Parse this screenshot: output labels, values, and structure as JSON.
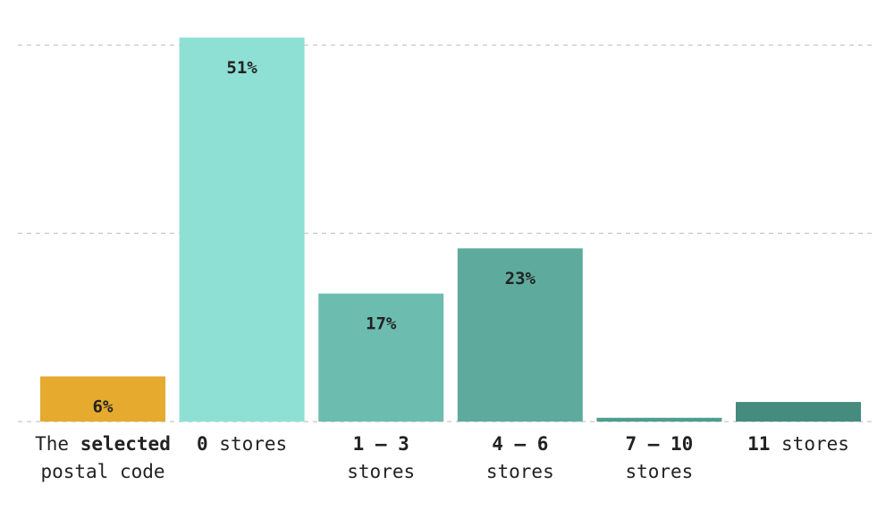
{
  "chart_data": {
    "type": "bar",
    "title": "",
    "xlabel": "",
    "ylabel": "",
    "ylim": [
      0,
      60
    ],
    "grid": true,
    "gridlines": [
      0,
      25,
      50
    ],
    "categories": [
      {
        "lines": [
          [
            {
              "text": "The ",
              "bold": false
            },
            {
              "text": "selected",
              "bold": true
            }
          ],
          [
            {
              "text": "postal code",
              "bold": false
            }
          ]
        ]
      },
      {
        "lines": [
          [
            {
              "text": "0",
              "bold": true
            },
            {
              "text": " stores",
              "bold": false
            }
          ]
        ]
      },
      {
        "lines": [
          [
            {
              "text": "1 – 3",
              "bold": true
            }
          ],
          [
            {
              "text": "stores",
              "bold": false
            }
          ]
        ]
      },
      {
        "lines": [
          [
            {
              "text": "4 – 6",
              "bold": true
            }
          ],
          [
            {
              "text": "stores",
              "bold": false
            }
          ]
        ]
      },
      {
        "lines": [
          [
            {
              "text": "7 – 10",
              "bold": true
            }
          ],
          [
            {
              "text": "stores",
              "bold": false
            }
          ]
        ]
      },
      {
        "lines": [
          [
            {
              "text": "11",
              "bold": true
            },
            {
              "text": " stores",
              "bold": false
            }
          ]
        ]
      }
    ],
    "values": [
      6,
      51,
      17,
      23,
      0.5,
      2.6
    ],
    "value_labels": [
      "6%",
      "51%",
      "17%",
      "23%",
      "",
      ""
    ],
    "colors": [
      "#e5aa2e",
      "#8ee0d4",
      "#6dbcb0",
      "#5eab9e",
      "#4e9d90",
      "#458b7e"
    ]
  }
}
